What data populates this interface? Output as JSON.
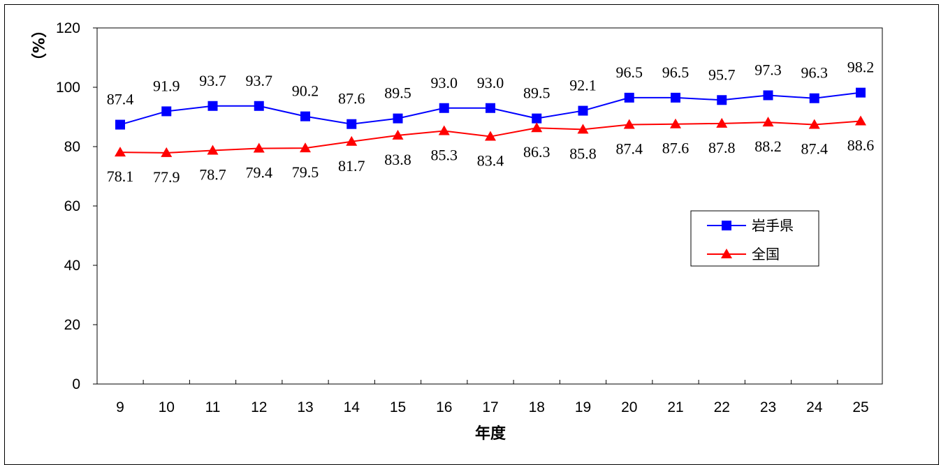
{
  "chart_data": {
    "type": "line",
    "title": "",
    "xlabel": "年度",
    "ylabel": "（%）",
    "x": [
      "9",
      "10",
      "11",
      "12",
      "13",
      "14",
      "15",
      "16",
      "17",
      "18",
      "19",
      "20",
      "21",
      "22",
      "23",
      "24",
      "25"
    ],
    "ylim": [
      0,
      120
    ],
    "yticks": [
      0,
      20,
      40,
      60,
      80,
      100,
      120
    ],
    "grid": false,
    "legend_position": "right",
    "series": [
      {
        "name": "岩手県",
        "color": "#0000ff",
        "marker": "square",
        "values": [
          87.4,
          91.9,
          93.7,
          93.7,
          90.2,
          87.6,
          89.5,
          93.0,
          93.0,
          89.5,
          92.1,
          96.5,
          96.5,
          95.7,
          97.3,
          96.3,
          98.2
        ],
        "labels": [
          "87.4",
          "91.9",
          "93.7",
          "93.7",
          "90.2",
          "87.6",
          "89.5",
          "93.0",
          "93.0",
          "89.5",
          "92.1",
          "96.5",
          "96.5",
          "95.7",
          "97.3",
          "96.3",
          "98.2"
        ],
        "label_position": "above"
      },
      {
        "name": "全国",
        "color": "#ff0000",
        "marker": "triangle",
        "values": [
          78.1,
          77.9,
          78.7,
          79.4,
          79.5,
          81.7,
          83.8,
          85.3,
          83.4,
          86.3,
          85.8,
          87.4,
          87.6,
          87.8,
          88.2,
          87.4,
          88.6
        ],
        "labels": [
          "78.1",
          "77.9",
          "78.7",
          "79.4",
          "79.5",
          "81.7",
          "83.8",
          "85.3",
          "83.4",
          "86.3",
          "85.8",
          "87.4",
          "87.6",
          "87.8",
          "88.2",
          "87.4",
          "88.6"
        ],
        "label_position": "below"
      }
    ]
  }
}
